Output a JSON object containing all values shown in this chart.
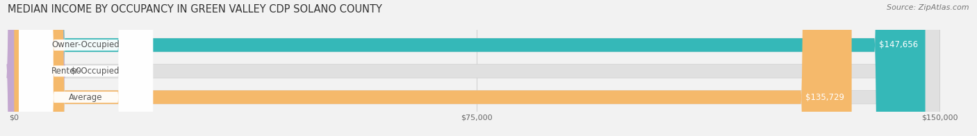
{
  "title": "MEDIAN INCOME BY OCCUPANCY IN GREEN VALLEY CDP SOLANO COUNTY",
  "source": "Source: ZipAtlas.com",
  "categories": [
    "Owner-Occupied",
    "Renter-Occupied",
    "Average"
  ],
  "values": [
    147656,
    0,
    135729
  ],
  "bar_colors": [
    "#35b8b8",
    "#c4a8d0",
    "#f5b96b"
  ],
  "background_color": "#f2f2f2",
  "bar_bg_color": "#e0e0e0",
  "label_bg_color": "#ffffff",
  "label_color": "#555555",
  "value_color_white": "#ffffff",
  "value_color_dark": "#555555",
  "xlim": [
    0,
    150000
  ],
  "xticks": [
    0,
    75000,
    150000
  ],
  "xtick_labels": [
    "$0",
    "$75,000",
    "$150,000"
  ],
  "renter_bar_width": 7000,
  "title_fontsize": 10.5,
  "source_fontsize": 8,
  "label_fontsize": 8.5,
  "value_fontsize": 8.5
}
